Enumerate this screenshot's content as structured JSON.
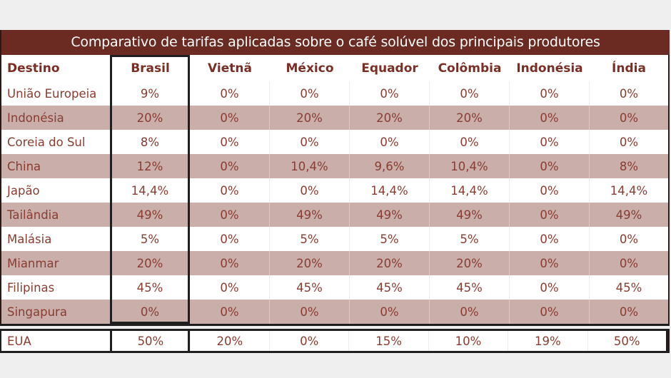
{
  "table": {
    "title": "Comparativo de tarifas aplicadas sobre o café solúvel dos principais produtores",
    "headers": [
      "Destino",
      "Brasil",
      "Vietnã",
      "México",
      "Equador",
      "Colômbia",
      "Indonésia",
      "Índia"
    ],
    "highlighted_column": "Brasil",
    "rows": [
      {
        "destino": "União Europeia",
        "values": [
          "9%",
          "0%",
          "0%",
          "0%",
          "0%",
          "0%",
          "0%"
        ]
      },
      {
        "destino": "Indonésia",
        "values": [
          "20%",
          "0%",
          "20%",
          "20%",
          "20%",
          "0%",
          "0%"
        ]
      },
      {
        "destino": "Coreia do Sul",
        "values": [
          "8%",
          "0%",
          "0%",
          "0%",
          "0%",
          "0%",
          "0%"
        ]
      },
      {
        "destino": "China",
        "values": [
          "12%",
          "0%",
          "10,4%",
          "9,6%",
          "10,4%",
          "0%",
          "8%"
        ]
      },
      {
        "destino": "Japão",
        "values": [
          "14,4%",
          "0%",
          "0%",
          "14,4%",
          "14,4%",
          "0%",
          "14,4%"
        ]
      },
      {
        "destino": "Tailândia",
        "values": [
          "49%",
          "0%",
          "49%",
          "49%",
          "49%",
          "0%",
          "49%"
        ]
      },
      {
        "destino": "Malásia",
        "values": [
          "5%",
          "0%",
          "5%",
          "5%",
          "5%",
          "0%",
          "0%"
        ]
      },
      {
        "destino": "Mianmar",
        "values": [
          "20%",
          "0%",
          "20%",
          "20%",
          "20%",
          "0%",
          "0%"
        ]
      },
      {
        "destino": "Filipinas",
        "values": [
          "45%",
          "0%",
          "45%",
          "45%",
          "45%",
          "0%",
          "45%"
        ]
      },
      {
        "destino": "Singapura",
        "values": [
          "0%",
          "0%",
          "0%",
          "0%",
          "0%",
          "0%",
          "0%"
        ]
      }
    ],
    "footer_row": {
      "destino": "EUA",
      "values": [
        "50%",
        "20%",
        "0%",
        "15%",
        "10%",
        "19%",
        "50%"
      ]
    }
  },
  "colors": {
    "title_bg": "#6b2a22",
    "header_text": "#7a2e24",
    "cell_text": "#8a3c30",
    "stripe": "#c9aeaa",
    "frame": "#1f1f1f"
  }
}
